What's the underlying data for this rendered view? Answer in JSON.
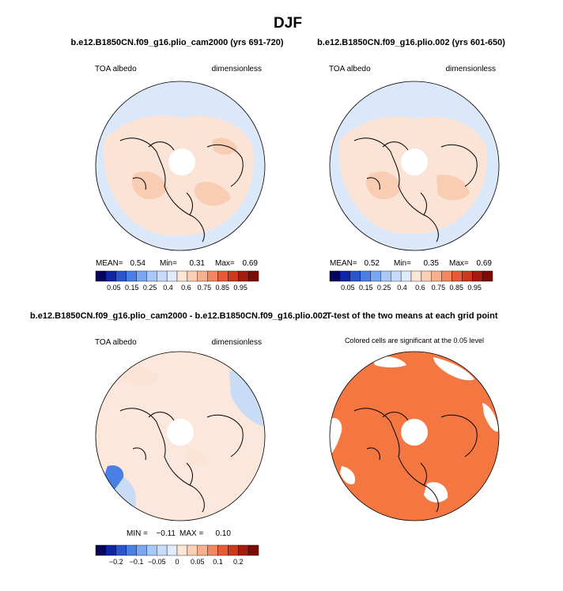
{
  "chart_data": {
    "type": "heatmap",
    "title": "DJF",
    "projection": "north polar stereographic",
    "panels": [
      {
        "title": "b.e12.B1850CN.f09_g16.plio_cam2000 (yrs 691-720)",
        "variable": "TOA albedo",
        "units": "dimensionless",
        "stats": [
          {
            "label": "MEAN=",
            "value": "0.54"
          },
          {
            "label": "Min=",
            "value": "0.31"
          },
          {
            "label": "Max=",
            "value": "0.69"
          }
        ],
        "colorbar_id": "abs"
      },
      {
        "title": "b.e12.B1850CN.f09_g16.plio.002 (yrs 601-650)",
        "variable": "TOA albedo",
        "units": "dimensionless",
        "stats": [
          {
            "label": "MEAN=",
            "value": "0.52"
          },
          {
            "label": "Min=",
            "value": "0.35"
          },
          {
            "label": "Max=",
            "value": "0.69"
          }
        ],
        "colorbar_id": "abs"
      },
      {
        "title": "b.e12.B1850CN.f09_g16.plio_cam2000 - b.e12.B1850CN.f09_g16.plio.002",
        "variable": "TOA albedo",
        "units": "dimensionless",
        "stats": [
          {
            "label": "MIN =",
            "value": "−0.11"
          },
          {
            "label": "MAX =",
            "value": "0.10"
          }
        ],
        "colorbar_id": "diff"
      },
      {
        "title": "T-test of the two means at each grid point",
        "subtitle": "Colored cells are significant at the 0.05 level",
        "significance_level": 0.05
      }
    ],
    "colorbars": {
      "abs": {
        "labels": [
          "0.05",
          "0.15",
          "0.25",
          "0.4",
          "0.6",
          "0.75",
          "0.85",
          "0.95"
        ],
        "colors": [
          "#05055e",
          "#1024a8",
          "#2a55cf",
          "#4a7fe6",
          "#7aa6f2",
          "#a8c8f8",
          "#c7dcfb",
          "#e0ecfd",
          "#fde6d6",
          "#fbcfb4",
          "#f8b08c",
          "#f4875f",
          "#e85a36",
          "#cc3a1d",
          "#a21d0d",
          "#7a0c05"
        ]
      },
      "diff": {
        "labels": [
          "−0.2",
          "−0.1",
          "−0.05",
          "0",
          "0.05",
          "0.1",
          "0.2"
        ],
        "colors": [
          "#05055e",
          "#1024a8",
          "#2a55cf",
          "#4a7fe6",
          "#7aa6f2",
          "#a8c8f8",
          "#c7dcfb",
          "#e0ecfd",
          "#fde6d6",
          "#fbcfb4",
          "#f8b08c",
          "#f4875f",
          "#e85a36",
          "#cc3a1d",
          "#a21d0d",
          "#7a0c05"
        ]
      }
    }
  },
  "palette": {
    "ocean_light": "#dbe8fa",
    "land_light": "#fbe3d6",
    "land_mid": "#f8cdb4",
    "diff_pos": "#fbe7dc",
    "diff_neg": "#c9dcf6",
    "diff_strong_neg": "#4a7fe6",
    "ttest_fill": "#f47742",
    "hole": "#ffffff"
  }
}
